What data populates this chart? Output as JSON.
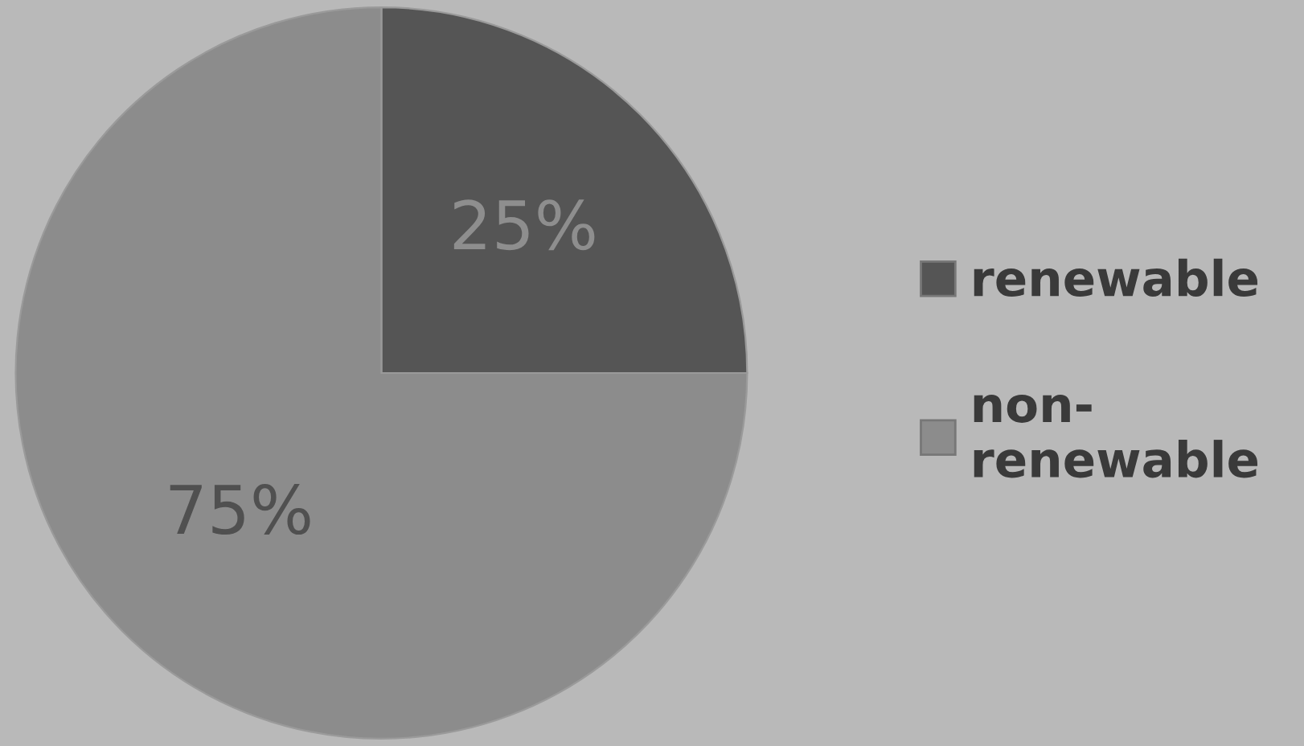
{
  "chart_data": {
    "type": "pie",
    "categories": [
      "renewable",
      "non-\nrenewable"
    ],
    "values": [
      25,
      75
    ],
    "colors": [
      "#555555",
      "#8c8c8c"
    ],
    "value_labels": [
      "25%",
      "75%"
    ],
    "legend": "right"
  }
}
